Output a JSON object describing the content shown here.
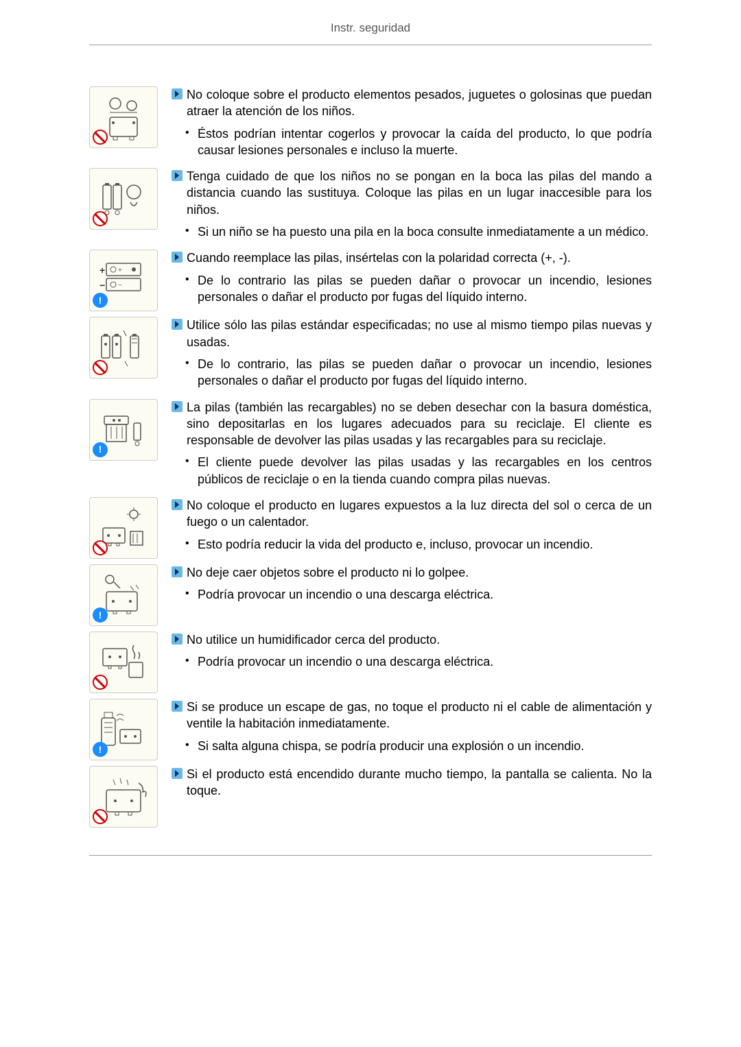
{
  "header": {
    "title": "Instr. seguridad"
  },
  "sections": [
    {
      "badge": "prohibit",
      "svg": "toys",
      "heading": "No coloque sobre el producto elementos pesados, juguetes o golosinas que puedan atraer la atención de los niños.",
      "bullets": [
        "Éstos podrían intentar cogerlos y provocar la caída del producto, lo que podría causar lesiones personales e incluso la muerte."
      ]
    },
    {
      "badge": "prohibit",
      "svg": "batteries-child",
      "heading": "Tenga cuidado de que los niños no se pongan en la boca las pilas del mando a distancia cuando las sustituya. Coloque las pilas en un lugar inaccesible para los niños.",
      "bullets": [
        "Si un niño se ha puesto una pila en la boca consulte inmediatamente a un médico."
      ]
    },
    {
      "badge": "info",
      "svg": "polarity",
      "heading": "Cuando reemplace las pilas, insértelas con la polaridad correcta (+, -).",
      "bullets": [
        "De lo contrario las pilas se pueden dañar o provocar un incendio, lesiones personales o dañar el producto por fugas del líquido interno."
      ]
    },
    {
      "badge": "prohibit",
      "svg": "batteries-mix",
      "heading": "Utilice sólo las pilas estándar especificadas; no use al mismo tiempo pilas nuevas y usadas.",
      "bullets": [
        "De lo contrario, las pilas se pueden dañar o provocar un incendio, lesiones personales o dañar el producto por fugas del líquido interno."
      ]
    },
    {
      "badge": "info",
      "svg": "recycle",
      "heading": "La pilas (también las recargables) no se deben desechar con la basura doméstica, sino depositarlas en los lugares adecuados para su reciclaje. El cliente es responsable de devolver las pilas usadas y las recargables para su reciclaje.",
      "bullets": [
        "El cliente puede devolver las pilas usadas y las recargables en los centros públicos de reciclaje o en la tienda cuando compra pilas nuevas."
      ]
    },
    {
      "badge": "prohibit",
      "svg": "sun-heater",
      "heading": "No coloque el producto en lugares expuestos a la luz directa del sol o cerca de un fuego o un calentador.",
      "bullets": [
        "Esto podría reducir la vida del producto e, incluso, provocar un incendio."
      ]
    },
    {
      "badge": "info",
      "svg": "impact",
      "heading": "No deje caer objetos sobre el producto ni lo golpee.",
      "bullets": [
        "Podría provocar un incendio o una descarga eléctrica."
      ]
    },
    {
      "badge": "prohibit",
      "svg": "humidifier",
      "heading": "No utilice un humidificador cerca del producto.",
      "bullets": [
        "Podría provocar un incendio o una descarga eléctrica."
      ]
    },
    {
      "badge": "info",
      "svg": "gas",
      "heading": "Si se produce un escape de gas, no toque el producto ni el cable de alimentación y ventile la habitación inmediatamente.",
      "bullets": [
        "Si salta alguna chispa, se podría producir una explosión o un incendio."
      ]
    },
    {
      "badge": "prohibit",
      "svg": "hot",
      "heading": "Si el producto está encendido durante mucho tiempo, la pantalla se calienta. No la toque.",
      "bullets": []
    }
  ],
  "svgs": {
    "toys": "<rect x='20' y='35' width='40' height='28' rx='3' fill='none' stroke='#555' stroke-width='1.5'/><circle cx='25' cy='43' r='2' fill='#555'/><circle cx='55' cy='43' r='2' fill='#555'/><rect x='25' y='63' width='6' height='5' fill='none' stroke='#555'/><rect x='49' y='63' width='6' height='5' fill='none' stroke='#555'/><circle cx='28' cy='15' r='8' fill='none' stroke='#555' stroke-width='1.5'/><circle cx='52' cy='18' r='7' fill='none' stroke='#555' stroke-width='1.5'/><path d='M20 28 L60 28' stroke='#555'/>",
    "batteries-child": "<rect x='10' y='15' width='12' height='35' rx='2' fill='none' stroke='#555' stroke-width='1.5'/><rect x='25' y='15' width='12' height='35' rx='2' fill='none' stroke='#555' stroke-width='1.5'/><rect x='13' y='12' width='6' height='3' fill='#555'/><rect x='28' y='12' width='6' height='3' fill='#555'/><circle cx='55' cy='25' r='10' fill='none' stroke='#555' stroke-width='1.5'/><path d='M50 40 Q55 50 60 40' fill='none' stroke='#555' stroke-width='1.5'/><circle cx='16' cy='55' r='3' fill='none' stroke='#555'/><circle cx='31' cy='55' r='3' fill='none' stroke='#555'/>",
    "polarity": "<rect x='15' y='10' width='50' height='18' rx='2' fill='none' stroke='#555' stroke-width='1.5'/><rect x='15' y='32' width='50' height='18' rx='2' fill='none' stroke='#555' stroke-width='1.5'/><text x='5' y='25' font-size='14' font-weight='bold' fill='#333'>+</text><text x='5' y='47' font-size='14' font-weight='bold' fill='#333'>−</text><circle cx='25' cy='19' r='4' fill='none' stroke='#555'/><text x='32' y='23' font-size='10' fill='#555'>+</text><circle cx='55' cy='19' r='3' fill='#555'/><circle cx='25' cy='41' r='4' fill='none' stroke='#555'/><text x='32' y='45' font-size='10' fill='#555'>−</text>",
    "batteries-mix": "<rect x='8' y='18' width='12' height='32' rx='2' fill='none' stroke='#555' stroke-width='1.5'/><rect x='24' y='18' width='12' height='32' rx='2' fill='none' stroke='#555' stroke-width='1.5'/><rect x='50' y='18' width='12' height='32' rx='2' fill='none' stroke='#555' stroke-width='1.5'/><rect x='11' y='15' width='6' height='3' fill='#555'/><rect x='27' y='15' width='6' height='3' fill='#555'/><rect x='53' y='15' width='6' height='3' fill='#555'/><circle cx='14' cy='30' r='2' fill='#555'/><circle cx='30' cy='30' r='2' fill='#555'/><path d='M52 22 L60 22 M52 28 L60 28' stroke='#555'/><path d='M40 10 L44 18 M42 55 L46 62' stroke='#555' stroke-width='1'/>",
    "recycle": "<rect x='12' y='15' width='35' height='12' rx='2' fill='none' stroke='#555' stroke-width='1.5'/><rect x='15' y='27' width='29' height='25' fill='none' stroke='#555' stroke-width='1.5'/><line x1='22' y1='30' x2='22' y2='48' stroke='#555'/><line x1='30' y1='30' x2='30' y2='48' stroke='#555'/><line x1='38' y1='30' x2='38' y2='48' stroke='#555'/><circle cx='26' cy='21' r='2' fill='#555'/><circle cx='34' cy='21' r='2' fill='#555'/><rect x='55' y='25' width='10' height='25' rx='2' fill='none' stroke='#555' stroke-width='1.5'/><circle cx='60' cy='55' r='3' fill='none' stroke='#555'/>",
    "sun-heater": "<circle cx='55' cy='15' r='6' fill='none' stroke='#555' stroke-width='1.5'/><line x1='55' y1='5' x2='55' y2='8' stroke='#555'/><line x1='55' y1='22' x2='55' y2='25' stroke='#555'/><line x1='45' y1='15' x2='48' y2='15' stroke='#555'/><line x1='62' y1='15' x2='65' y2='15' stroke='#555'/><rect x='10' y='35' width='32' height='22' rx='2' fill='none' stroke='#555' stroke-width='1.5'/><circle cx='18' cy='46' r='2' fill='#555'/><circle cx='34' cy='46' r='2' fill='#555'/><rect x='18' y='57' width='4' height='4' fill='none' stroke='#555'/><rect x='30' y='57' width='4' height='4' fill='none' stroke='#555'/><rect x='50' y='40' width='18' height='20' fill='none' stroke='#555' stroke-width='1.5'/><line x1='54' y1='43' x2='54' y2='57' stroke='#555'/><line x1='60' y1='43' x2='60' y2='57' stroke='#555'/>",
    "impact": "<circle cx='20' cy='12' r='6' fill='none' stroke='#555' stroke-width='1.5'/><path d='M26 16 L35 25' stroke='#555' stroke-width='1.5'/><rect x='15' y='30' width='45' height='28' rx='3' fill='none' stroke='#555' stroke-width='1.5'/><circle cx='25' cy='44' r='2' fill='#555'/><circle cx='50' cy='44' r='2' fill='#555'/><rect x='25' y='58' width='5' height='4' fill='none' stroke='#555'/><rect x='45' y='58' width='5' height='4' fill='none' stroke='#555'/><path d='M50 22 L55 28 M58 20 L62 26' stroke='#555' stroke-width='1'/>",
    "humidifier": "<rect x='10' y='15' width='35' height='25' rx='2' fill='none' stroke='#555' stroke-width='1.5'/><circle cx='20' cy='27' r='2' fill='#555'/><circle cx='35' cy='27' r='2' fill='#555'/><rect x='18' y='40' width='4' height='4' fill='none' stroke='#555'/><rect x='33' y='40' width='4' height='4' fill='none' stroke='#555'/><rect x='48' y='35' width='20' height='22' rx='2' fill='none' stroke='#555' stroke-width='1.5'/><path d='M55 30 Q58 25 55 20 Q52 15 55 10' fill='none' stroke='#555' stroke-width='1.5'/><path d='M62 30 Q65 25 62 20' fill='none' stroke='#555' stroke-width='1.5'/>",
    "gas": "<rect x='8' y='18' width='20' height='40' rx='3' fill='none' stroke='#555' stroke-width='1.5'/><rect x='12' y='10' width='12' height='8' fill='none' stroke='#555'/><line x1='12' y1='25' x2='24' y2='25' stroke='#555'/><line x1='12' y1='32' x2='24' y2='32' stroke='#555'/><line x1='12' y1='39' x2='24' y2='39' stroke='#555'/><rect x='35' y='35' width='30' height='20' rx='2' fill='none' stroke='#555' stroke-width='1.5'/><circle cx='43' cy='45' r='2' fill='#555'/><circle cx='57' cy='45' r='2' fill='#555'/><path d='M30 15 Q35 10 40 15' fill='none' stroke='#555'/><path d='M30 22 Q35 17 40 22' fill='none' stroke='#555'/>",
    "hot": "<rect x='15' y='25' width='50' height='32' rx='3' fill='none' stroke='#555' stroke-width='1.5'/><circle cx='28' cy='41' r='2' fill='#555'/><circle cx='52' cy='41' r='2' fill='#555'/><rect x='28' y='57' width='5' height='5' fill='none' stroke='#555'/><rect x='47' y='57' width='5' height='5' fill='none' stroke='#555'/><path d='M62 15 Q70 20 68 28 Q75 25 72 35' fill='none' stroke='#555' stroke-width='1.5'/><path d='M25 10 L28 18 M35 8 L37 16 M45 10 L47 18' stroke='#555' stroke-width='1'/>"
  }
}
